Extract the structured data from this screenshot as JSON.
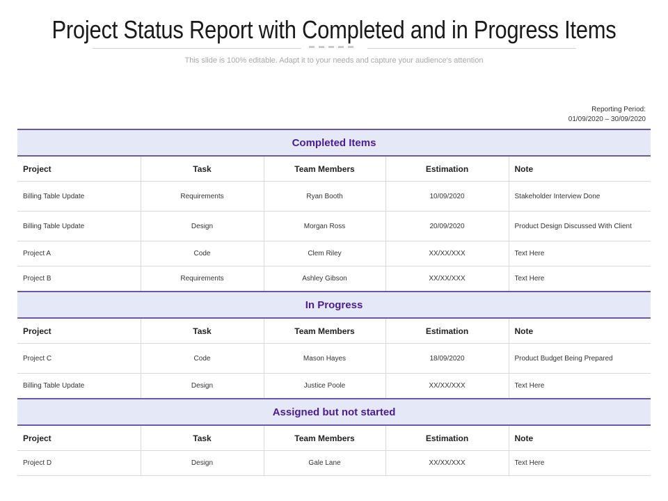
{
  "title": "Project Status Report with Completed and in Progress Items",
  "subtitle": "This slide is 100% editable. Adapt it to your needs and capture your audience's attention",
  "reporting_period": {
    "label": "Reporting Period:",
    "range": "01/09/2020 – 30/09/2020"
  },
  "columns": [
    "Project",
    "Task",
    "Team Members",
    "Estimation",
    "Note"
  ],
  "sections": [
    {
      "title": "Completed Items",
      "rows": [
        [
          "Billing Table Update",
          "Requirements",
          "Ryan Booth",
          "10/09/2020",
          "Stakeholder Interview Done"
        ],
        [
          "Billing Table Update",
          "Design",
          "Morgan Ross",
          "20/09/2020",
          "Product Design Discussed With Client"
        ],
        [
          "Project A",
          "Code",
          "Clem Riley",
          "XX/XX/XXX",
          "Text Here"
        ],
        [
          "Project B",
          "Requirements",
          "Ashley Gibson",
          "XX/XX/XXX",
          "Text Here"
        ]
      ]
    },
    {
      "title": "In Progress",
      "rows": [
        [
          "Project C",
          "Code",
          "Mason Hayes",
          "18/09/2020",
          "Product Budget Being Prepared"
        ],
        [
          "Billing Table Update",
          "Design",
          "Justice Poole",
          "XX/XX/XXX",
          "Text Here"
        ]
      ]
    },
    {
      "title": "Assigned but not started",
      "rows": [
        [
          "Project D",
          "Design",
          "Gale Lane",
          "XX/XX/XXX",
          "Text Here"
        ]
      ]
    }
  ],
  "colors": {
    "section_bg": "#e5e8f7",
    "section_text": "#4b1c96",
    "section_border": "#6f55a8"
  }
}
